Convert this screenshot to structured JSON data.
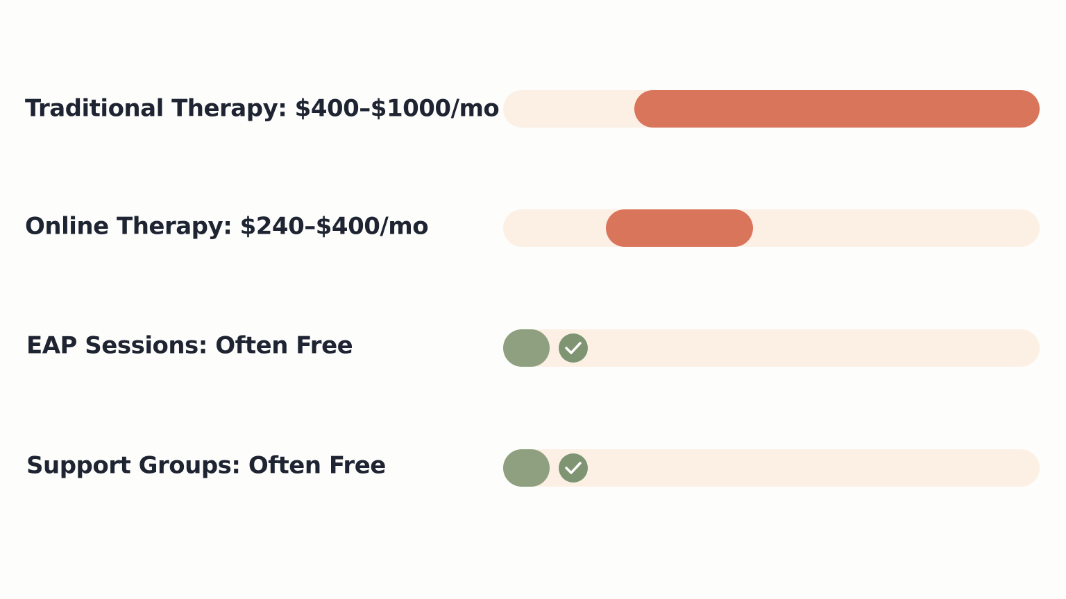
{
  "rows": [
    {
      "label": "Traditional Therapy: $400–$1000/mo"
    },
    {
      "label": "Online Therapy: $240–$400/mo"
    },
    {
      "label": "EAP Sessions: Often Free"
    },
    {
      "label": "Support Groups: Often Free"
    }
  ]
}
